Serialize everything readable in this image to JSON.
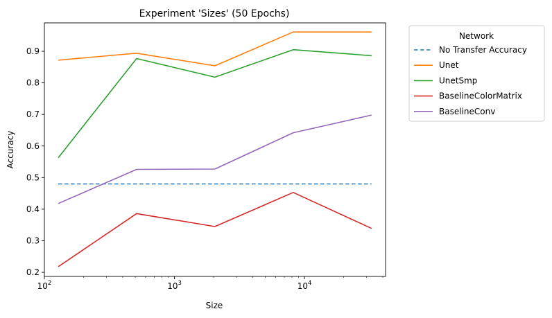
{
  "chart_data": {
    "type": "line",
    "title": "Experiment 'Sizes' (50 Epochs)",
    "xlabel": "Size",
    "ylabel": "Accuracy",
    "xscale": "log",
    "xlim": [
      100,
      42000
    ],
    "ylim": [
      0.187,
      0.99
    ],
    "x_ticks": [
      {
        "value": 100,
        "base": "10",
        "exp": "2"
      },
      {
        "value": 1000,
        "base": "10",
        "exp": "3"
      },
      {
        "value": 10000,
        "base": "10",
        "exp": "4"
      }
    ],
    "y_ticks": [
      0.2,
      0.3,
      0.4,
      0.5,
      0.6,
      0.7,
      0.8,
      0.9
    ],
    "y_tick_labels": [
      "0.2",
      "0.3",
      "0.4",
      "0.5",
      "0.6",
      "0.7",
      "0.8",
      "0.9"
    ],
    "grid": false,
    "legend": {
      "title": "Network",
      "placement": "outside-top-right"
    },
    "x": [
      128,
      512,
      2048,
      8192,
      32768
    ],
    "series": [
      {
        "name": "No Transfer Accuracy",
        "color": "#1f77b4",
        "dashed": true,
        "values": [
          0.48,
          0.48,
          0.48,
          0.48,
          0.48
        ]
      },
      {
        "name": "Unet",
        "color": "#ff7f0e",
        "dashed": false,
        "values": [
          0.872,
          0.894,
          0.854,
          0.961,
          0.961
        ]
      },
      {
        "name": "UnetSmp",
        "color": "#2ca02c",
        "dashed": false,
        "values": [
          0.563,
          0.877,
          0.818,
          0.905,
          0.886
        ]
      },
      {
        "name": "BaselineColorMatrix",
        "color": "#d62728",
        "dashed": false,
        "values": [
          0.218,
          0.386,
          0.345,
          0.453,
          0.339
        ]
      },
      {
        "name": "BaselineConv",
        "color": "#9467bd",
        "dashed": false,
        "values": [
          0.418,
          0.526,
          0.527,
          0.642,
          0.698
        ]
      }
    ]
  }
}
